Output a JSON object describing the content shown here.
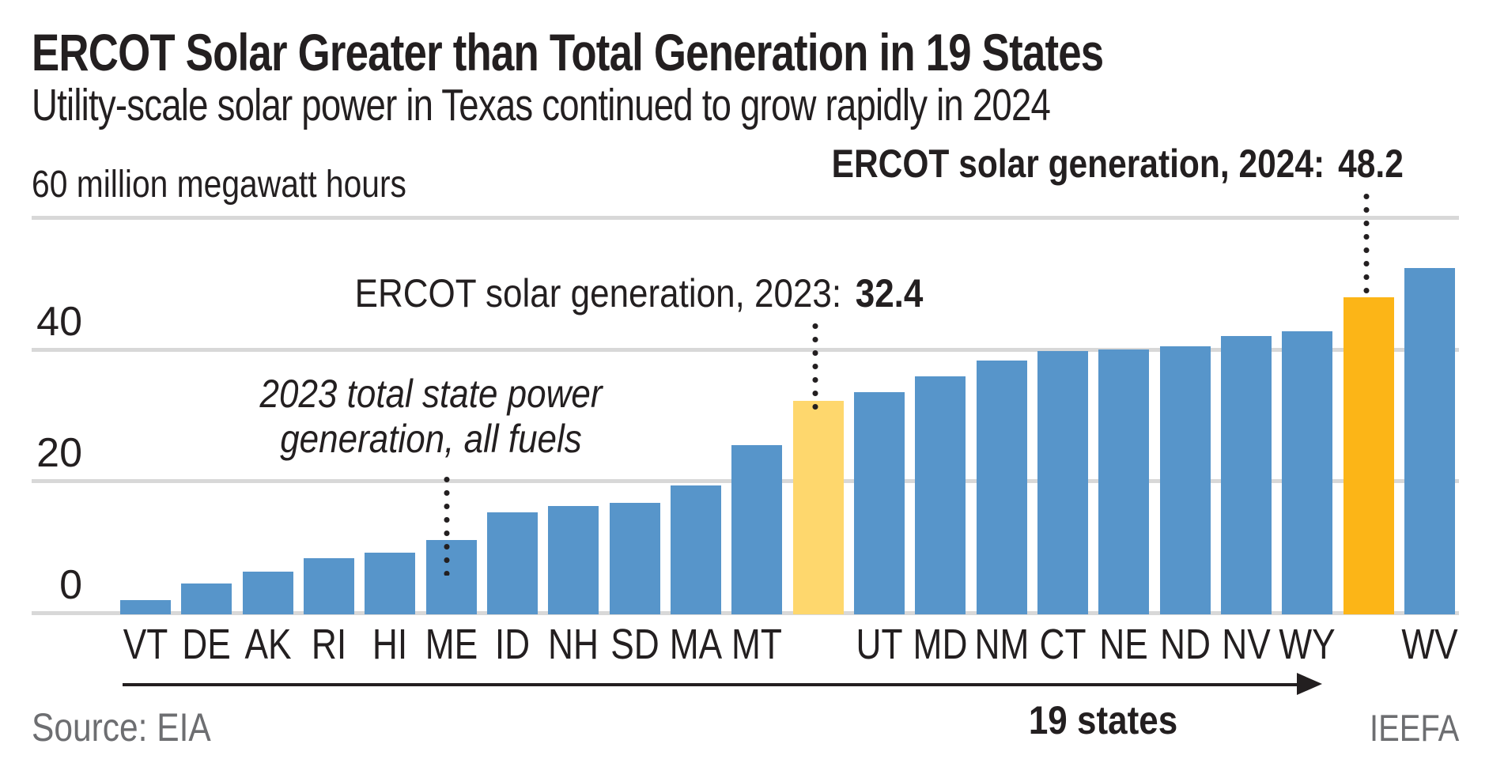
{
  "header": {
    "title": "ERCOT Solar Greater than Total Generation in 19 States",
    "subtitle": "Utility-scale solar power in Texas continued to grow rapidly in 2024"
  },
  "chart_data": {
    "type": "bar",
    "title": "ERCOT Solar Greater than Total Generation in 19 States",
    "unit_label": "60 million megawatt hours",
    "ylabel": "million megawatt hours",
    "ylim": [
      0,
      60
    ],
    "yticks": [
      0,
      20,
      40,
      60
    ],
    "ytick_labels": [
      "0",
      "20",
      "40"
    ],
    "grid": true,
    "bars": [
      {
        "label": "VT",
        "value": 2.2,
        "series": "state"
      },
      {
        "label": "DE",
        "value": 4.7,
        "series": "state"
      },
      {
        "label": "AK",
        "value": 6.5,
        "series": "state"
      },
      {
        "label": "RI",
        "value": 8.5,
        "series": "state"
      },
      {
        "label": "HI",
        "value": 9.4,
        "series": "state"
      },
      {
        "label": "ME",
        "value": 11.3,
        "series": "state"
      },
      {
        "label": "ID",
        "value": 15.5,
        "series": "state"
      },
      {
        "label": "NH",
        "value": 16.4,
        "series": "state"
      },
      {
        "label": "SD",
        "value": 16.9,
        "series": "state"
      },
      {
        "label": "MA",
        "value": 19.6,
        "series": "state"
      },
      {
        "label": "MT",
        "value": 25.7,
        "series": "state"
      },
      {
        "label": "",
        "value": 32.4,
        "series": "ercot_2023"
      },
      {
        "label": "UT",
        "value": 33.7,
        "series": "state"
      },
      {
        "label": "MD",
        "value": 36.1,
        "series": "state"
      },
      {
        "label": "NM",
        "value": 38.5,
        "series": "state"
      },
      {
        "label": "CT",
        "value": 40.0,
        "series": "state"
      },
      {
        "label": "NE",
        "value": 40.2,
        "series": "state"
      },
      {
        "label": "ND",
        "value": 40.7,
        "series": "state"
      },
      {
        "label": "NV",
        "value": 42.3,
        "series": "state"
      },
      {
        "label": "WY",
        "value": 43.0,
        "series": "state"
      },
      {
        "label": "",
        "value": 48.2,
        "series": "ercot_2024"
      },
      {
        "label": "WV",
        "value": 52.6,
        "series": "state"
      }
    ],
    "colors": {
      "state": "#5795ca",
      "ercot_2023": "#fed76d",
      "ercot_2024": "#fcb517",
      "gridline": "#d8d8d8",
      "text": "#231f20",
      "muted_text": "#6d6e71"
    },
    "legend_position": "none",
    "annotations": {
      "ercot_2024": {
        "text": "ERCOT solar generation, 2024:",
        "value": "48.2"
      },
      "ercot_2023": {
        "text": "ERCOT solar generation, 2023:",
        "value": "32.4"
      },
      "state_note_line1": "2023 total state power",
      "state_note_line2": "generation, all fuels",
      "arrow_label": "19 states"
    }
  },
  "footer": {
    "source": "Source: EIA",
    "credit": "IEEFA"
  }
}
